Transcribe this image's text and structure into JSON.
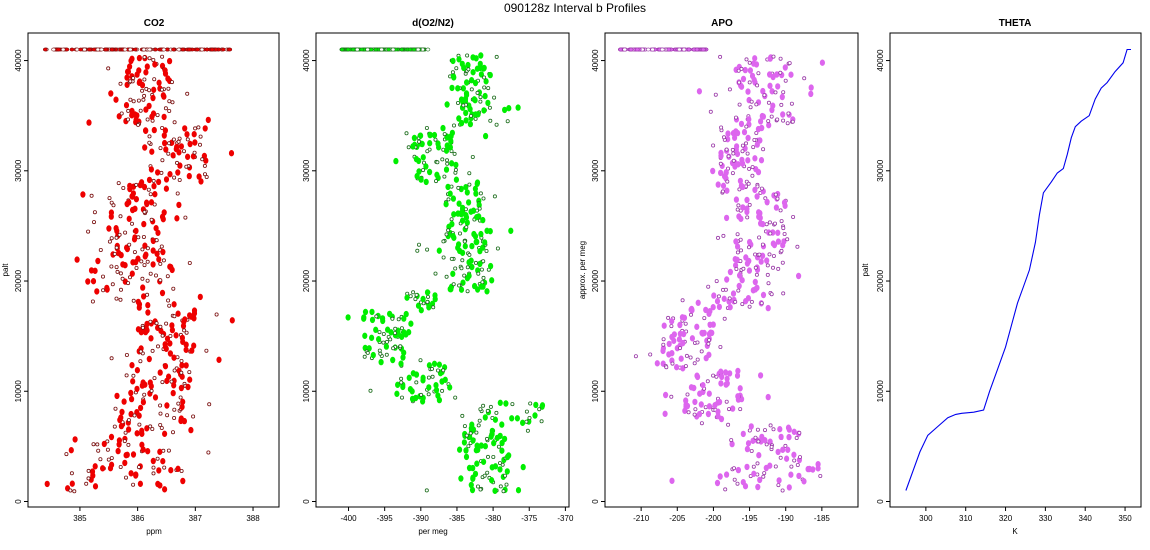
{
  "figure_title": "090128z   Interval b Profiles",
  "chart_data": [
    {
      "type": "scatter",
      "title": "CO2",
      "xlabel": "ppm",
      "ylabel": "palt",
      "xlim": [
        384.1,
        388.45
      ],
      "ylim": [
        -500,
        42500
      ],
      "xticks": [
        385,
        386,
        387,
        388
      ],
      "yticks": [
        0,
        10000,
        20000,
        30000,
        40000
      ],
      "fill_color": "#ee0000",
      "edge_color": "#7a1010",
      "series": [
        {
          "name": "CO2",
          "segments": [
            [
              900,
              3000,
              384.8,
              386.8
            ],
            [
              3000,
              6000,
              385.2,
              386.6
            ],
            [
              6000,
              10000,
              385.6,
              386.8
            ],
            [
              10000,
              14000,
              385.8,
              387.0
            ],
            [
              14000,
              18000,
              386.0,
              387.0
            ],
            [
              18000,
              22000,
              385.2,
              386.6
            ],
            [
              22000,
              29000,
              385.5,
              386.5
            ],
            [
              29000,
              34000,
              386.2,
              387.2
            ],
            [
              34000,
              38000,
              385.6,
              386.6
            ],
            [
              38000,
              40500,
              385.8,
              386.6
            ]
          ],
          "top_band": {
            "y": 41000,
            "x_range": [
              384.4,
              387.6
            ]
          }
        }
      ]
    },
    {
      "type": "scatter",
      "title": "d(O2/N2)",
      "xlabel": "per meg",
      "ylabel": "",
      "xlim": [
        -404.5,
        -369.5
      ],
      "ylim": [
        -500,
        42500
      ],
      "xticks": [
        -400,
        -395,
        -390,
        -385,
        -380,
        -375,
        -370
      ],
      "yticks": [
        0,
        10000,
        20000,
        30000,
        40000
      ],
      "fill_color": "#00ee00",
      "edge_color": "#1e6e1e",
      "series": [
        {
          "name": "d(O2/N2)",
          "segments": [
            [
              900,
              2500,
              -385,
              -377
            ],
            [
              2500,
              7000,
              -384,
              -378
            ],
            [
              7000,
              9000,
              -382,
              -373
            ],
            [
              9000,
              12500,
              -393,
              -386
            ],
            [
              12500,
              17500,
              -398,
              -392
            ],
            [
              17500,
              19000,
              -392,
              -388
            ],
            [
              19000,
              23000,
              -386,
              -380
            ],
            [
              23000,
              29000,
              -387,
              -381
            ],
            [
              29000,
              34000,
              -391,
              -385
            ],
            [
              34000,
              39000,
              -386,
              -380
            ],
            [
              39000,
              40500,
              -386,
              -381
            ]
          ],
          "top_band": {
            "y": 41000,
            "x_range": [
              -401,
              -389
            ]
          }
        }
      ]
    },
    {
      "type": "scatter",
      "title": "APO",
      "xlabel": "",
      "ylabel": "approx. per meg",
      "xlim": [
        -215,
        -180
      ],
      "ylim": [
        -500,
        42500
      ],
      "xticks": [
        -210,
        -205,
        -200,
        -195,
        -190,
        -185
      ],
      "yticks": [
        0,
        10000,
        20000,
        30000,
        40000
      ],
      "fill_color": "#dd66ee",
      "edge_color": "#9a3aa8",
      "series": [
        {
          "name": "APO",
          "segments": [
            [
              900,
              3000,
              -200,
              -186
            ],
            [
              3000,
              7000,
              -196,
              -188
            ],
            [
              7000,
              12000,
              -204,
              -196
            ],
            [
              12000,
              17500,
              -207,
              -200
            ],
            [
              17500,
              21000,
              -200,
              -192
            ],
            [
              21000,
              28000,
              -197,
              -190
            ],
            [
              28000,
              34000,
              -199,
              -193
            ],
            [
              34000,
              40500,
              -197,
              -189
            ]
          ],
          "top_band": {
            "y": 41000,
            "x_range": [
              -213,
              -201
            ]
          }
        }
      ]
    },
    {
      "type": "line",
      "title": "THETA",
      "xlabel": "K",
      "ylabel": "palt",
      "xlim": [
        291,
        354
      ],
      "ylim": [
        -500,
        42500
      ],
      "xticks": [
        300,
        310,
        320,
        330,
        340,
        350
      ],
      "yticks": [
        0,
        10000,
        20000,
        30000,
        40000
      ],
      "line_color": "#0000ee",
      "series": [
        {
          "name": "THETA",
          "x": [
            295,
            295.5,
            297,
            298.5,
            300.5,
            303,
            305.5,
            307.5,
            309,
            312,
            314.5,
            316,
            318,
            320,
            321.5,
            323,
            324.5,
            326,
            327.5,
            328.5,
            329.5,
            331.5,
            333,
            334.5,
            335.5,
            336.5,
            337.5,
            339,
            341,
            342.5,
            344,
            345.5,
            347.5,
            349.5,
            350.5,
            351.5
          ],
          "y": [
            1000,
            1500,
            3000,
            4500,
            6000,
            6800,
            7600,
            7900,
            8000,
            8100,
            8300,
            10000,
            12000,
            14000,
            16000,
            18000,
            19500,
            21000,
            23500,
            26000,
            28000,
            29000,
            29800,
            30200,
            31500,
            33000,
            34000,
            34500,
            35000,
            36500,
            37500,
            38000,
            39000,
            39800,
            41000,
            41000
          ]
        }
      ]
    }
  ]
}
